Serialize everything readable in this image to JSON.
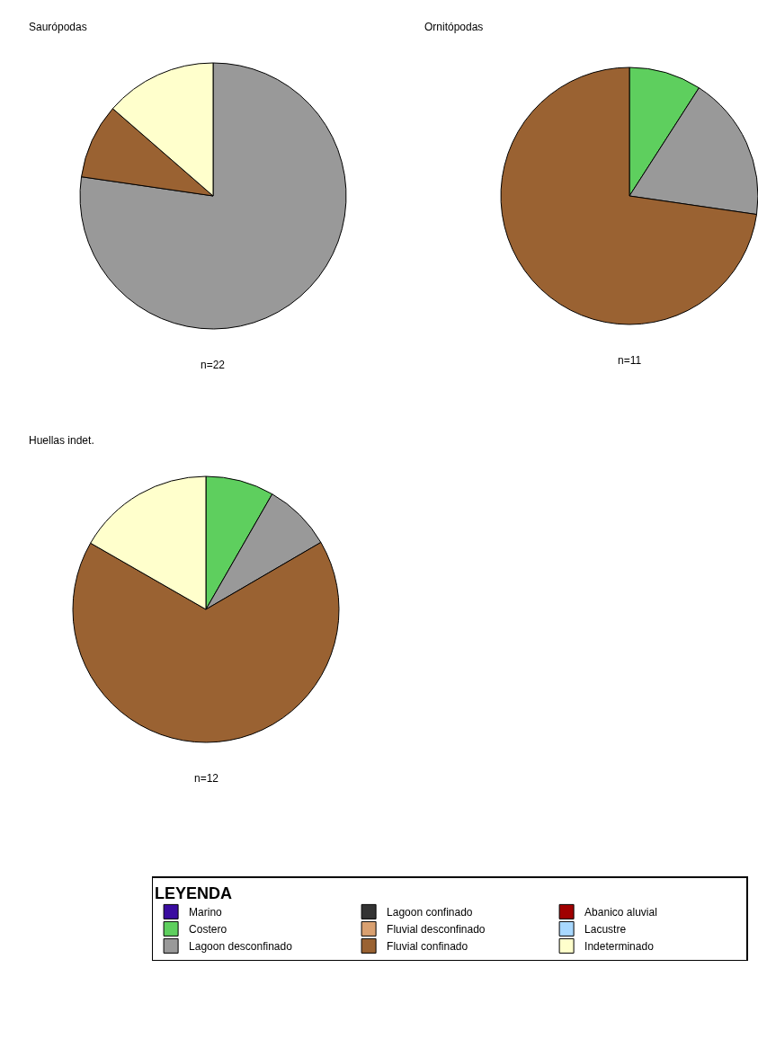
{
  "chart_data": [
    {
      "type": "pie",
      "title": "Saurópodas",
      "annotations": [
        "n=22"
      ],
      "categories": [
        null,
        null,
        null
      ],
      "values": [
        77.3,
        9.1,
        13.6
      ],
      "colors": [
        "#999999",
        "#9a6232",
        "#ffffcc"
      ]
    },
    {
      "type": "pie",
      "title": "Ornitópodas",
      "annotations": [
        "n=11"
      ],
      "categories": [
        null,
        null,
        null
      ],
      "values": [
        9.1,
        18.2,
        72.7
      ],
      "colors": [
        "#5ecf5e",
        "#999999",
        "#9a6232"
      ]
    },
    {
      "type": "pie",
      "title": "Huellas indet.",
      "annotations": [
        "n=12"
      ],
      "categories": [
        null,
        null,
        null,
        null
      ],
      "values": [
        8.3,
        8.3,
        66.7,
        16.7
      ],
      "colors": [
        "#5ecf5e",
        "#999999",
        "#9a6232",
        "#ffffcc"
      ]
    },
    {
      "type": "other",
      "legend_title": "LEYENDA",
      "categories": [
        "Marino",
        "Lagoon confinado",
        "Abanico aluvial",
        "Costero",
        "Fluvial desconfinado",
        "Lacustre",
        "Lagoon desconfinado",
        "Fluvial confinado",
        "Indeterminado"
      ],
      "colors": [
        "#3a0ca0",
        "#333333",
        "#a00000",
        "#5ecf5e",
        "#d9a070",
        "#a8d8ff",
        "#999999",
        "#9a6232",
        "#ffffcc"
      ]
    }
  ]
}
